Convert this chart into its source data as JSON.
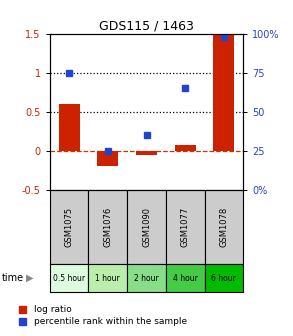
{
  "title": "GDS115 / 1463",
  "samples": [
    "GSM1075",
    "GSM1076",
    "GSM1090",
    "GSM1077",
    "GSM1078"
  ],
  "time_labels": [
    "0.5 hour",
    "1 hour",
    "2 hour",
    "4 hour",
    "6 hour"
  ],
  "time_colors": [
    "#ddfcdd",
    "#bbeeaa",
    "#88dd88",
    "#44cc44",
    "#00bb00"
  ],
  "log_ratio": [
    0.6,
    -0.2,
    -0.05,
    0.08,
    1.5
  ],
  "percentile_rank": [
    75,
    25,
    35,
    65,
    98
  ],
  "bar_color": "#cc2200",
  "dot_color": "#2244cc",
  "ylim_left": [
    -0.5,
    1.5
  ],
  "ylim_right": [
    0,
    100
  ],
  "hlines_dotted": [
    0.5,
    1.0
  ],
  "hline_dashed_red": 0.0,
  "legend_log_ratio": "log ratio",
  "legend_percentile": "percentile rank within the sample",
  "time_row_label": "time"
}
